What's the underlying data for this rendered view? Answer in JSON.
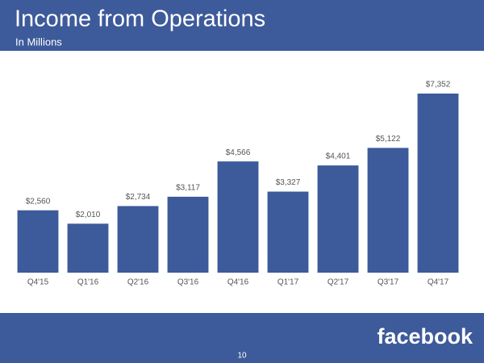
{
  "chart_data": {
    "type": "bar",
    "title": "Income from Operations",
    "subtitle": "In Millions",
    "categories": [
      "Q4'15",
      "Q1'16",
      "Q2'16",
      "Q3'16",
      "Q4'16",
      "Q1'17",
      "Q2'17",
      "Q3'17",
      "Q4'17"
    ],
    "values": [
      2560,
      2010,
      2734,
      3117,
      4566,
      3327,
      4401,
      5122,
      7352
    ],
    "value_labels": [
      "$2,560",
      "$2,010",
      "$2,734",
      "$3,117",
      "$4,566",
      "$3,327",
      "$4,401",
      "$5,122",
      "$7,352"
    ],
    "color": "#3d5a9a"
  },
  "footer": {
    "brand": "facebook",
    "page_number": "10"
  }
}
